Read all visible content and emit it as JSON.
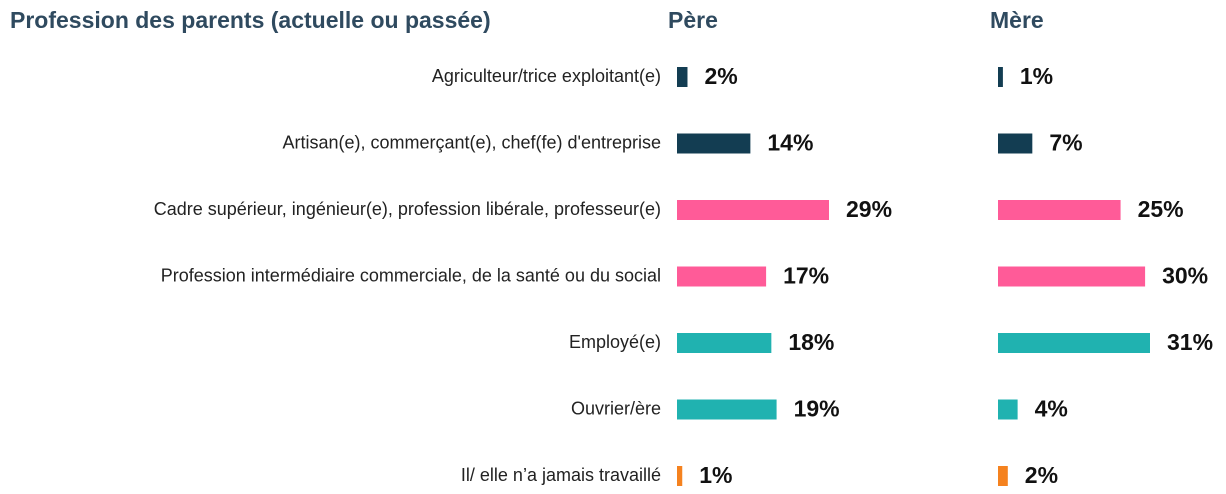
{
  "chart_data": {
    "type": "bar",
    "orientation": "horizontal",
    "title": "Profession des parents (actuelle ou passée)",
    "categories": [
      "Agriculteur/trice exploitant(e)",
      "Artisan(e), commerçant(e), chef(fe) d'entreprise",
      "Cadre supérieur, ingénieur(e), profession libérale, professeur(e)",
      "Profession intermédiaire commerciale, de la santé ou du social",
      "Employé(e)",
      "Ouvrier/ère",
      "Il/ elle n’a jamais travaillé"
    ],
    "colors": [
      "#133d52",
      "#133d52",
      "#ff5b98",
      "#ff5b98",
      "#20b2b0",
      "#20b2b0",
      "#f5821f"
    ],
    "series": [
      {
        "name": "Père",
        "values": [
          2,
          14,
          29,
          17,
          18,
          19,
          1
        ],
        "value_labels": [
          "2%",
          "14%",
          "29%",
          "17%",
          "18%",
          "19%",
          "1%"
        ]
      },
      {
        "name": "Mère",
        "values": [
          1,
          7,
          25,
          30,
          31,
          4,
          2
        ],
        "value_labels": [
          "1%",
          "7%",
          "25%",
          "30%",
          "31%",
          "4%",
          "2%"
        ]
      }
    ]
  }
}
